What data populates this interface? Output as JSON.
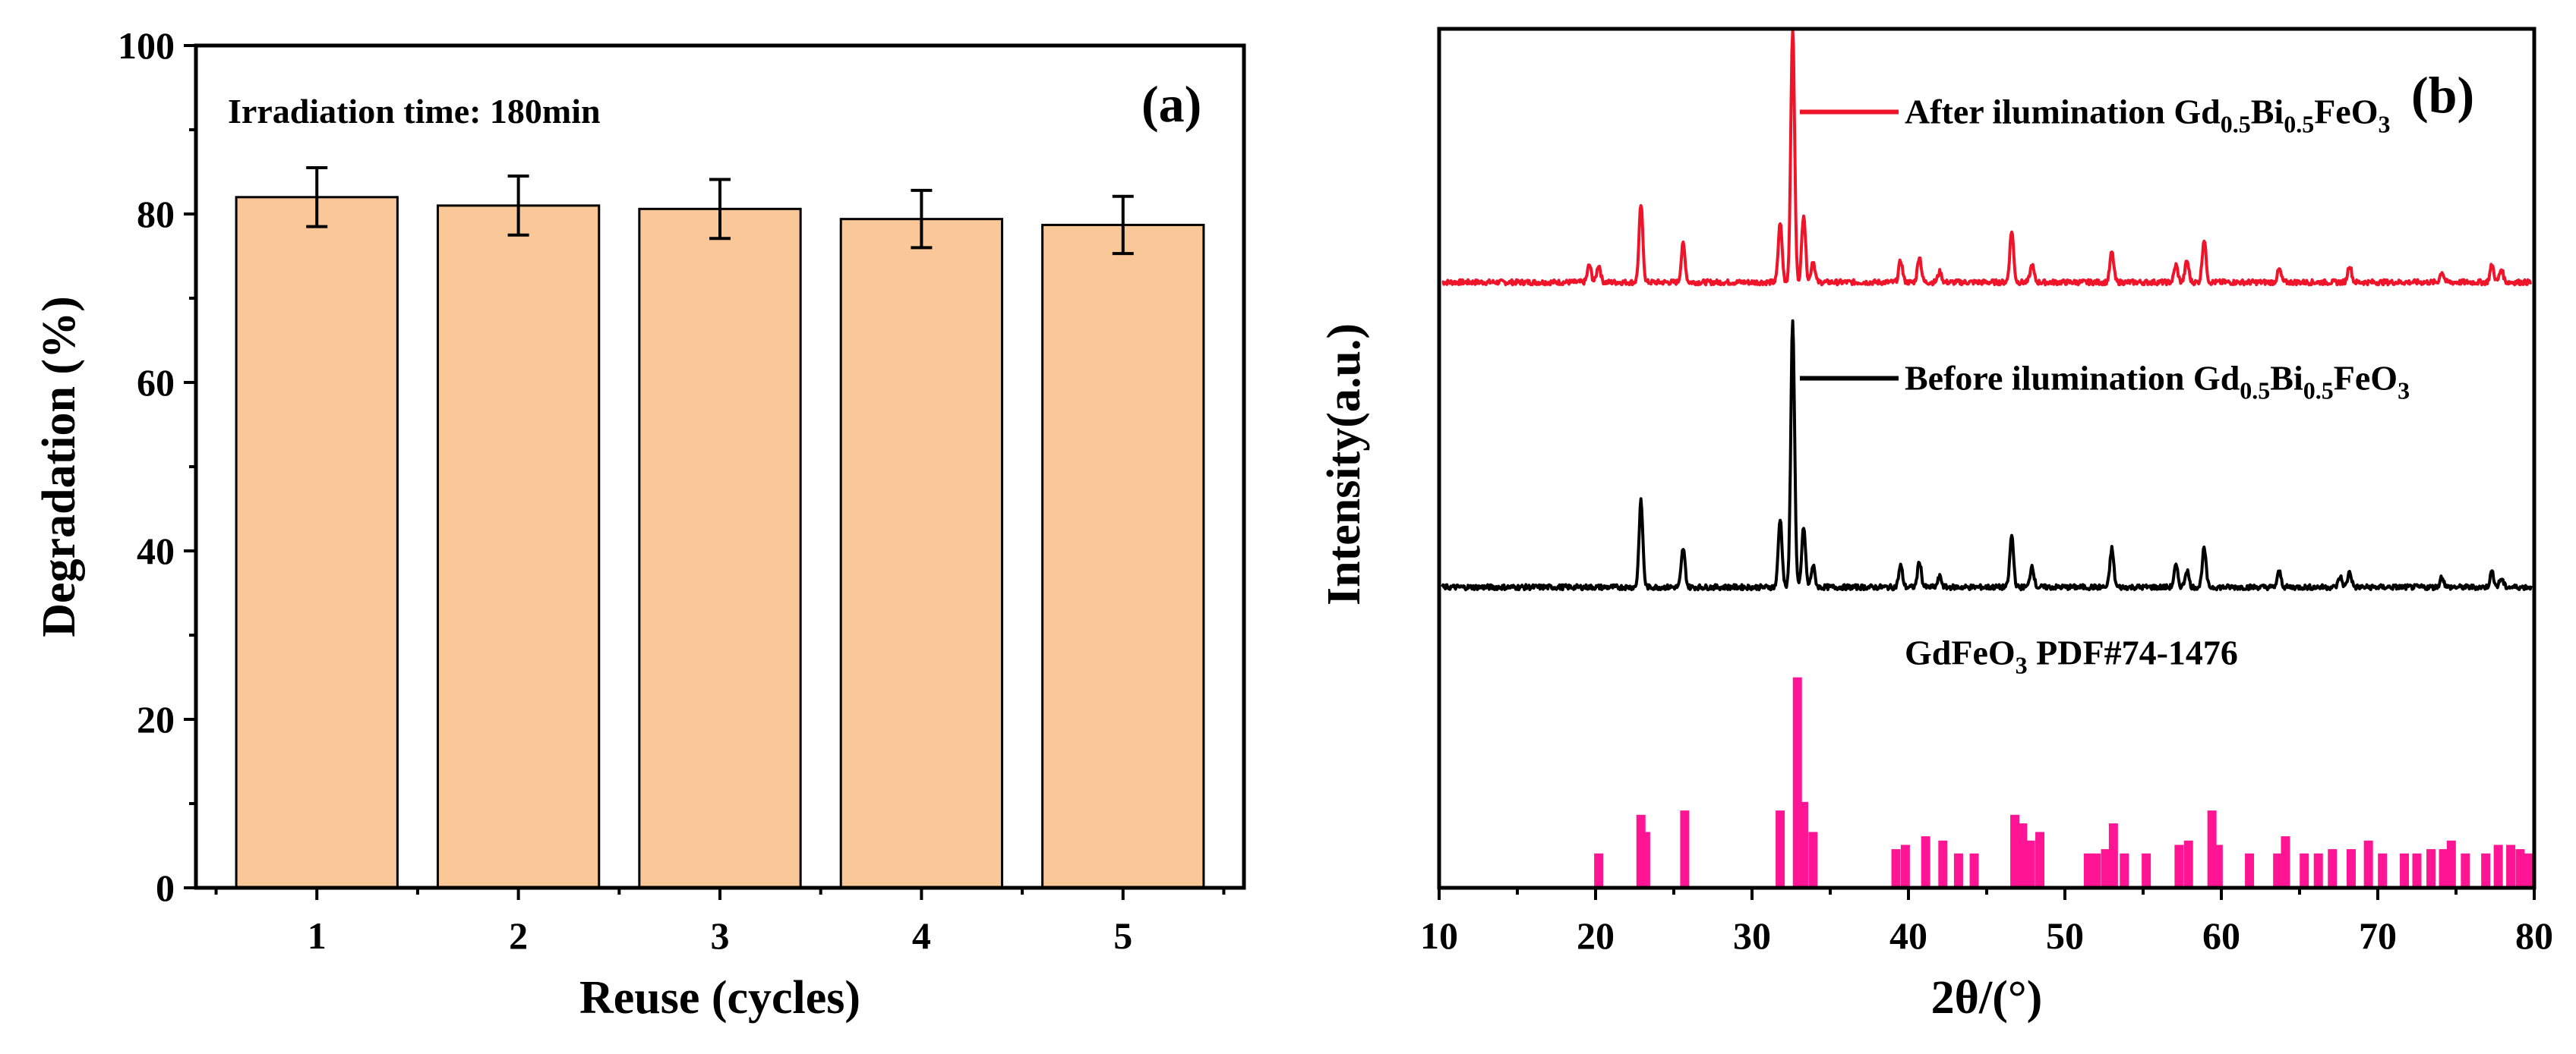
{
  "chart_data": [
    {
      "type": "bar",
      "panel_label": "(a)",
      "annotation": "Irradiation time: 180min",
      "xlabel": "Reuse (cycles)",
      "ylabel": "Degradation (%)",
      "ylim": [
        0,
        100
      ],
      "yticks": [
        0,
        20,
        40,
        60,
        80,
        100
      ],
      "categories": [
        "1",
        "2",
        "3",
        "4",
        "5"
      ],
      "values": [
        82,
        81,
        80.6,
        79.4,
        78.7
      ],
      "errors": [
        3.5,
        3.5,
        3.5,
        3.4,
        3.4
      ],
      "colors": {
        "bar": "#FAC898",
        "edge": "#000000"
      }
    },
    {
      "type": "line",
      "panel_label": "(b)",
      "xlabel": "2θ/(°)",
      "ylabel": "Intensity(a.u.)",
      "xlim": [
        10,
        80
      ],
      "xticks": [
        10,
        20,
        30,
        40,
        50,
        60,
        70,
        80
      ],
      "series": [
        {
          "name": "After ilumination Gd0.5Bi0.5FeO3",
          "legend_parts": [
            "After ilumination Gd",
            "0.5",
            "Bi",
            "0.5",
            "FeO",
            "3"
          ],
          "color": "#F0142A",
          "offset": 0.705,
          "peaks": [
            [
              19.6,
              0.02
            ],
            [
              20.2,
              0.02
            ],
            [
              22.9,
              0.09
            ],
            [
              25.6,
              0.045
            ],
            [
              31.8,
              0.07
            ],
            [
              32.6,
              0.295
            ],
            [
              33.3,
              0.08
            ],
            [
              33.9,
              0.025
            ],
            [
              39.5,
              0.025
            ],
            [
              40.7,
              0.03
            ],
            [
              42.0,
              0.012
            ],
            [
              46.6,
              0.06
            ],
            [
              47.9,
              0.02
            ],
            [
              53.0,
              0.035
            ],
            [
              57.1,
              0.02
            ],
            [
              57.8,
              0.025
            ],
            [
              58.9,
              0.05
            ],
            [
              63.7,
              0.015
            ],
            [
              68.2,
              0.02
            ],
            [
              74.1,
              0.012
            ],
            [
              77.3,
              0.02
            ],
            [
              77.9,
              0.015
            ]
          ]
        },
        {
          "name": "Before ilumination Gd0.5Bi0.5FeO3",
          "legend_parts": [
            "Before ilumination Gd",
            "0.5",
            "Bi",
            "0.5",
            "FeO",
            "3"
          ],
          "color": "#000000",
          "offset": 0.35,
          "peaks": [
            [
              22.9,
              0.1
            ],
            [
              25.6,
              0.045
            ],
            [
              31.8,
              0.08
            ],
            [
              32.6,
              0.31
            ],
            [
              33.3,
              0.07
            ],
            [
              33.9,
              0.025
            ],
            [
              39.5,
              0.025
            ],
            [
              40.7,
              0.03
            ],
            [
              42.0,
              0.012
            ],
            [
              46.6,
              0.06
            ],
            [
              47.9,
              0.025
            ],
            [
              53.0,
              0.045
            ],
            [
              57.1,
              0.025
            ],
            [
              57.8,
              0.02
            ],
            [
              58.9,
              0.045
            ],
            [
              63.7,
              0.018
            ],
            [
              67.6,
              0.012
            ],
            [
              68.2,
              0.018
            ],
            [
              74.1,
              0.012
            ],
            [
              77.3,
              0.018
            ],
            [
              77.9,
              0.01
            ]
          ]
        }
      ],
      "reference": {
        "label": "GdFeO3  PDF#74-1476",
        "label_parts": [
          "GdFeO",
          "3",
          "  PDF#74-1476"
        ],
        "color": "#FF1493",
        "baseline": 0,
        "sticks": [
          [
            20.2,
            0.04
          ],
          [
            22.9,
            0.085
          ],
          [
            23.2,
            0.065
          ],
          [
            25.7,
            0.09
          ],
          [
            31.8,
            0.09
          ],
          [
            32.9,
            0.245
          ],
          [
            33.3,
            0.1
          ],
          [
            33.9,
            0.065
          ],
          [
            39.2,
            0.045
          ],
          [
            39.8,
            0.05
          ],
          [
            41.1,
            0.06
          ],
          [
            42.2,
            0.055
          ],
          [
            43.2,
            0.04
          ],
          [
            44.2,
            0.04
          ],
          [
            46.8,
            0.085
          ],
          [
            47.3,
            0.075
          ],
          [
            47.8,
            0.055
          ],
          [
            48.4,
            0.065
          ],
          [
            51.5,
            0.04
          ],
          [
            52.0,
            0.04
          ],
          [
            52.6,
            0.045
          ],
          [
            53.1,
            0.075
          ],
          [
            53.8,
            0.04
          ],
          [
            55.2,
            0.04
          ],
          [
            57.3,
            0.05
          ],
          [
            57.9,
            0.055
          ],
          [
            59.4,
            0.09
          ],
          [
            59.8,
            0.05
          ],
          [
            61.8,
            0.04
          ],
          [
            63.6,
            0.04
          ],
          [
            64.1,
            0.06
          ],
          [
            65.3,
            0.04
          ],
          [
            66.2,
            0.04
          ],
          [
            67.1,
            0.045
          ],
          [
            68.3,
            0.045
          ],
          [
            69.4,
            0.055
          ],
          [
            70.3,
            0.04
          ],
          [
            71.7,
            0.04
          ],
          [
            72.5,
            0.04
          ],
          [
            73.4,
            0.045
          ],
          [
            74.2,
            0.045
          ],
          [
            74.7,
            0.055
          ],
          [
            75.6,
            0.04
          ],
          [
            76.9,
            0.04
          ],
          [
            77.7,
            0.05
          ],
          [
            78.5,
            0.05
          ],
          [
            79.1,
            0.045
          ],
          [
            79.6,
            0.04
          ]
        ]
      }
    }
  ]
}
